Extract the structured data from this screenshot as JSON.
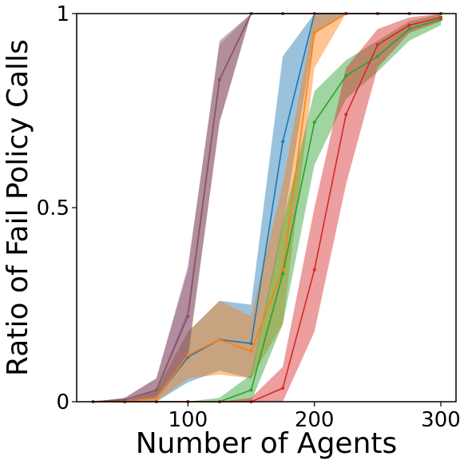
{
  "chart_data": {
    "type": "line",
    "title": "",
    "xlabel": "Number of Agents",
    "ylabel": "Ratio of Fail Policy Calls",
    "xlim": [
      12,
      312
    ],
    "ylim": [
      0,
      1
    ],
    "xticks": [
      100,
      200,
      300
    ],
    "xtick_labels": [
      "100",
      "200",
      "300"
    ],
    "yticks": [
      0,
      0.5,
      1
    ],
    "ytick_labels": [
      "0",
      "0.5",
      "1"
    ],
    "grid": false,
    "legend": "none",
    "x": [
      25,
      50,
      75,
      100,
      125,
      150,
      175,
      200,
      225,
      250,
      275,
      300
    ],
    "series": [
      {
        "color": "#1f77b4",
        "values": [
          0,
          0,
          0.01,
          0.115,
          0.16,
          0.15,
          0.67,
          1.0,
          1.0,
          1.0,
          1.0,
          1.0
        ],
        "lower": [
          0,
          0,
          0.0,
          0.05,
          0.08,
          0.06,
          0.45,
          0.95,
          1.0,
          1.0,
          1.0,
          1.0
        ],
        "upper": [
          0,
          0,
          0.03,
          0.18,
          0.26,
          0.25,
          0.89,
          1.0,
          1.0,
          1.0,
          1.0,
          1.0
        ]
      },
      {
        "color": "#ff7f0e",
        "values": [
          0,
          0,
          0.01,
          0.12,
          0.16,
          0.13,
          0.34,
          0.95,
          1.0,
          1.0,
          1.0,
          1.0
        ],
        "lower": [
          0,
          0,
          0.0,
          0.06,
          0.07,
          0.06,
          0.2,
          0.86,
          1.0,
          1.0,
          1.0,
          1.0
        ],
        "upper": [
          0,
          0,
          0.03,
          0.18,
          0.26,
          0.22,
          0.56,
          1.0,
          1.0,
          1.0,
          1.0,
          1.0
        ]
      },
      {
        "color": "#2ca02c",
        "values": [
          0,
          0,
          0,
          0,
          0,
          0.03,
          0.33,
          0.72,
          0.84,
          0.89,
          0.96,
          0.985
        ],
        "lower": [
          0,
          0,
          0,
          0,
          0,
          0.0,
          0.2,
          0.61,
          0.78,
          0.85,
          0.93,
          0.97
        ],
        "upper": [
          0,
          0,
          0,
          0,
          0.01,
          0.07,
          0.46,
          0.8,
          0.88,
          0.93,
          0.98,
          1.0
        ]
      },
      {
        "color": "#d62728",
        "values": [
          0,
          0,
          0,
          0,
          0,
          0,
          0.035,
          0.34,
          0.74,
          0.92,
          0.97,
          0.99
        ],
        "lower": [
          0,
          0,
          0,
          0,
          0,
          0,
          0.0,
          0.18,
          0.56,
          0.86,
          0.95,
          0.98
        ],
        "upper": [
          0,
          0,
          0,
          0,
          0,
          0.01,
          0.09,
          0.5,
          0.86,
          0.96,
          0.99,
          1.0
        ]
      },
      {
        "color": "#9467bd",
        "values": [
          0,
          0.005,
          0.03,
          0.23,
          0.83,
          1.0,
          1.0,
          1.0,
          1.0,
          1.0,
          1.0,
          1.0
        ],
        "lower": [
          0,
          0.0,
          0.01,
          0.12,
          0.72,
          1.0,
          1.0,
          1.0,
          1.0,
          1.0,
          1.0,
          1.0
        ],
        "upper": [
          0,
          0.01,
          0.06,
          0.35,
          0.92,
          1.0,
          1.0,
          1.0,
          1.0,
          1.0,
          1.0,
          1.0
        ]
      },
      {
        "color": "#8c564b",
        "values": [
          0,
          0.005,
          0.03,
          0.22,
          0.83,
          1.0,
          1.0,
          1.0,
          1.0,
          1.0,
          1.0,
          1.0
        ],
        "lower": [
          0,
          0.0,
          0.01,
          0.11,
          0.72,
          1.0,
          1.0,
          1.0,
          1.0,
          1.0,
          1.0,
          1.0
        ],
        "upper": [
          0,
          0.01,
          0.06,
          0.34,
          0.93,
          1.0,
          1.0,
          1.0,
          1.0,
          1.0,
          1.0,
          1.0
        ]
      }
    ]
  }
}
